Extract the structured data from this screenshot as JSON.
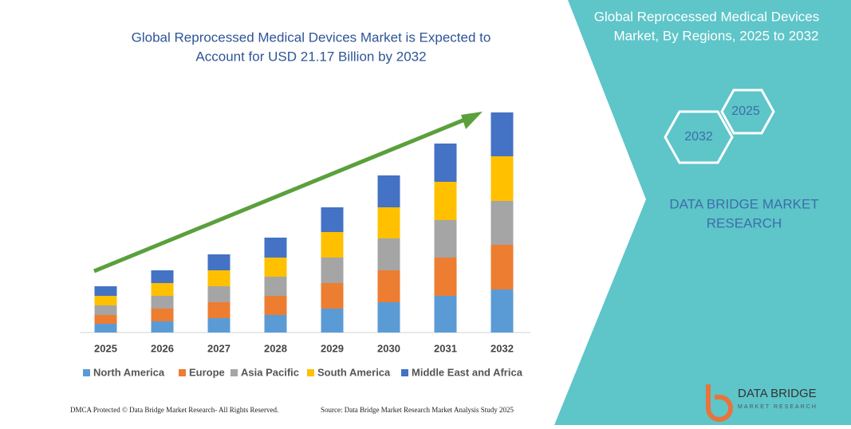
{
  "chart_data": {
    "type": "stacked-bar",
    "title": "Global Reprocessed Medical Devices Market is Expected to",
    "subtitle": "Account for USD 21.17 Billion by 2032",
    "categories": [
      "2025",
      "2026",
      "2027",
      "2028",
      "2029",
      "2030",
      "2031",
      "2032"
    ],
    "series": [
      {
        "name": "North America",
        "color": "#5b9bd5",
        "values": [
          11,
          14,
          18,
          22,
          30,
          38,
          46,
          54
        ]
      },
      {
        "name": "Europe",
        "color": "#ed7d31",
        "values": [
          11,
          16,
          20,
          24,
          32,
          40,
          48,
          56
        ]
      },
      {
        "name": "Asia Pacific",
        "color": "#a5a5a5",
        "values": [
          12,
          16,
          20,
          24,
          32,
          40,
          47,
          55
        ]
      },
      {
        "name": "South America",
        "color": "#ffc000",
        "values": [
          12,
          16,
          20,
          24,
          32,
          39,
          48,
          56
        ]
      },
      {
        "name": "Middle East and Africa",
        "color": "#4472c4",
        "values": [
          12,
          16,
          20,
          25,
          31,
          40,
          48,
          55
        ]
      }
    ]
  },
  "panel": {
    "title": [
      "Global Reprocessed Medical Devices",
      "Market, By Regions, 2025 to 2032"
    ],
    "hex_large": "2032",
    "hex_small": "2025",
    "brand": [
      "DATA BRIDGE MARKET",
      "RESEARCH"
    ]
  },
  "logo": {
    "name": "DATA BRIDGE",
    "tagline": "MARKET RESEARCH"
  },
  "footer": {
    "left": "DMCA Protected © Data Bridge Market Research- All Rights Reserved.",
    "right": "Source: Data Bridge Market Research Market Analysis Study 2025"
  }
}
